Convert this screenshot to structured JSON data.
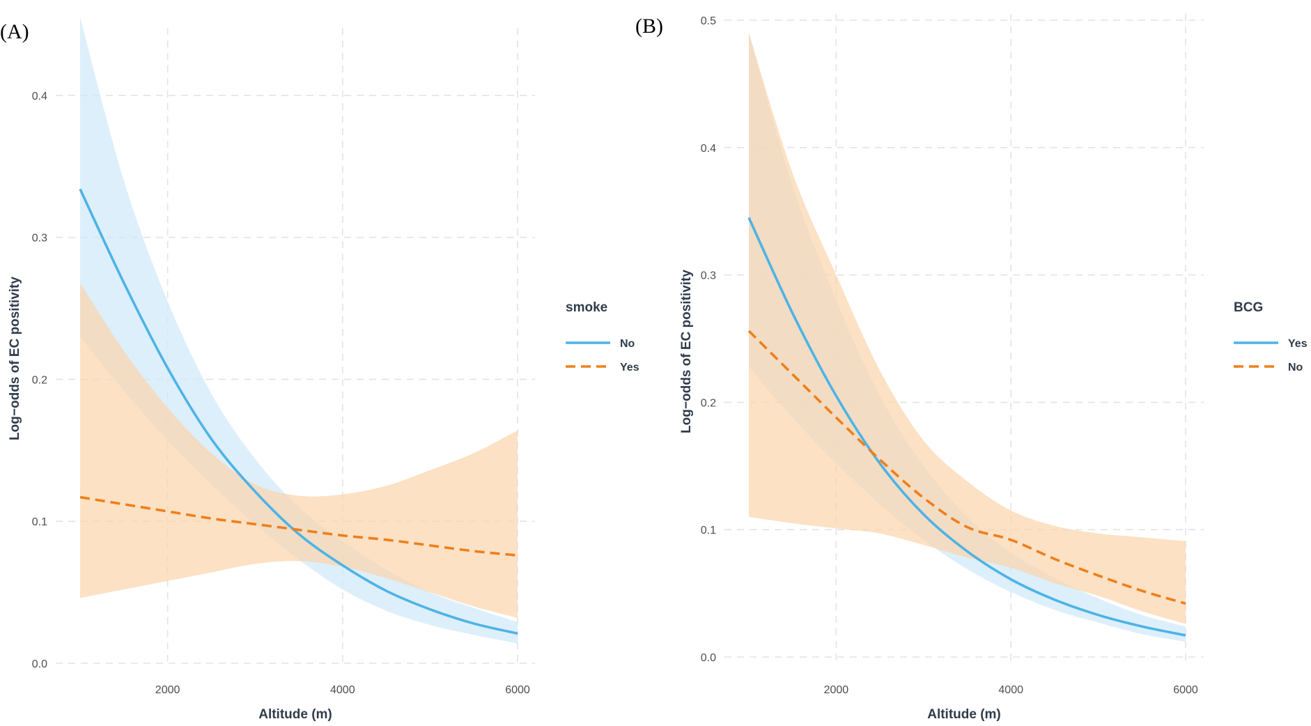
{
  "chart_data": [
    {
      "type": "line",
      "panel_label": "(A)",
      "xlabel": "Altitude (m)",
      "ylabel": "Log−odds of EC positivity",
      "xlim": [
        1000,
        6000
      ],
      "ylim": [
        0,
        0.45
      ],
      "x_ticks": [
        2000,
        4000,
        6000
      ],
      "x_tick_labels": [
        "2000",
        "4000",
        "6000"
      ],
      "y_ticks": [
        0,
        0.1,
        0.2,
        0.3,
        0.4
      ],
      "y_tick_labels": [
        "0.0",
        "0.1",
        "0.2",
        "0.3",
        "0.4"
      ],
      "grid": true,
      "legend": {
        "title": "smoke",
        "position": "right"
      },
      "x": [
        1000,
        1500,
        2000,
        2500,
        3000,
        3500,
        4000,
        4500,
        5000,
        5500,
        6000
      ],
      "series": [
        {
          "name": "No",
          "color": "#4db3e6",
          "dash": "solid",
          "band_color": "#cfe8f8",
          "values": [
            0.334,
            0.268,
            0.208,
            0.158,
            0.121,
            0.091,
            0.069,
            0.051,
            0.038,
            0.028,
            0.021
          ],
          "lower": [
            0.23,
            0.192,
            0.157,
            0.126,
            0.098,
            0.073,
            0.052,
            0.037,
            0.027,
            0.02,
            0.014
          ],
          "upper": [
            0.455,
            0.34,
            0.255,
            0.19,
            0.144,
            0.11,
            0.086,
            0.066,
            0.05,
            0.039,
            0.029
          ]
        },
        {
          "name": "Yes",
          "color": "#ef7f1a",
          "dash": "dashed",
          "band_color": "#fbd4ab",
          "values": [
            0.117,
            0.112,
            0.107,
            0.102,
            0.098,
            0.094,
            0.09,
            0.087,
            0.083,
            0.079,
            0.076
          ],
          "lower": [
            0.046,
            0.052,
            0.058,
            0.064,
            0.07,
            0.072,
            0.068,
            0.06,
            0.05,
            0.04,
            0.032
          ],
          "upper": [
            0.268,
            0.22,
            0.18,
            0.148,
            0.126,
            0.118,
            0.119,
            0.125,
            0.136,
            0.148,
            0.164
          ]
        }
      ]
    },
    {
      "type": "line",
      "panel_label": "(B)",
      "xlabel": "Altitude (m)",
      "ylabel": "Log−odds of EC positivity",
      "xlim": [
        1000,
        6000
      ],
      "ylim": [
        0,
        0.5
      ],
      "x_ticks": [
        2000,
        4000,
        6000
      ],
      "x_tick_labels": [
        "2000",
        "4000",
        "6000"
      ],
      "y_ticks": [
        0,
        0.1,
        0.2,
        0.3,
        0.4,
        0.5
      ],
      "y_tick_labels": [
        "0.0",
        "0.1",
        "0.2",
        "0.3",
        "0.4",
        "0.5"
      ],
      "grid": true,
      "legend": {
        "title": "BCG",
        "position": "right"
      },
      "x": [
        1000,
        1500,
        2000,
        2500,
        3000,
        3500,
        4000,
        4500,
        5000,
        5500,
        6000
      ],
      "series": [
        {
          "name": "Yes",
          "color": "#4db3e6",
          "dash": "solid",
          "band_color": "#cfe8f8",
          "values": [
            0.345,
            0.27,
            0.205,
            0.152,
            0.112,
            0.083,
            0.061,
            0.045,
            0.033,
            0.024,
            0.017
          ],
          "lower": [
            0.228,
            0.188,
            0.152,
            0.12,
            0.092,
            0.069,
            0.051,
            0.037,
            0.027,
            0.018,
            0.012
          ],
          "upper": [
            0.49,
            0.37,
            0.28,
            0.205,
            0.15,
            0.11,
            0.082,
            0.062,
            0.046,
            0.033,
            0.024
          ]
        },
        {
          "name": "No",
          "color": "#ef7f1a",
          "dash": "dashed",
          "band_color": "#fbd4ab",
          "values": [
            0.256,
            0.222,
            0.188,
            0.155,
            0.125,
            0.102,
            0.092,
            0.077,
            0.064,
            0.052,
            0.042
          ],
          "lower": [
            0.11,
            0.105,
            0.101,
            0.097,
            0.088,
            0.078,
            0.07,
            0.058,
            0.048,
            0.036,
            0.026
          ],
          "upper": [
            0.49,
            0.38,
            0.3,
            0.225,
            0.17,
            0.138,
            0.115,
            0.103,
            0.097,
            0.094,
            0.091
          ]
        }
      ]
    }
  ]
}
